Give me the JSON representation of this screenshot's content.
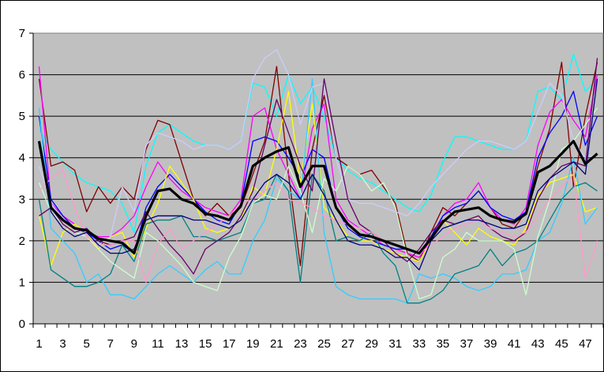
{
  "chart_data": {
    "type": "line",
    "title": "",
    "xlabel": "",
    "ylabel": "",
    "x": [
      1,
      2,
      3,
      4,
      5,
      6,
      7,
      8,
      9,
      10,
      11,
      12,
      13,
      14,
      15,
      16,
      17,
      18,
      19,
      20,
      21,
      22,
      23,
      24,
      25,
      26,
      27,
      28,
      29,
      30,
      31,
      32,
      33,
      34,
      35,
      36,
      37,
      38,
      39,
      40,
      41,
      42,
      43,
      44,
      45,
      46,
      47,
      48
    ],
    "x_tick_labels": [
      "1",
      "3",
      "5",
      "7",
      "9",
      "11",
      "13",
      "15",
      "17",
      "19",
      "21",
      "23",
      "25",
      "27",
      "29",
      "31",
      "33",
      "35",
      "37",
      "39",
      "41",
      "43",
      "45",
      "47"
    ],
    "y_ticks": [
      0,
      1,
      2,
      3,
      4,
      5,
      6,
      7
    ],
    "ylim": [
      0,
      7
    ],
    "grid": "horizontal",
    "plot_background": "#c0c0c0",
    "legend": "none",
    "average_series": {
      "color": "#000000",
      "values": [
        4.4,
        2.8,
        2.5,
        2.3,
        2.25,
        2.05,
        2.0,
        1.95,
        1.7,
        2.6,
        3.2,
        3.25,
        3.0,
        2.9,
        2.65,
        2.6,
        2.5,
        2.85,
        3.8,
        4.0,
        4.15,
        4.25,
        3.3,
        3.8,
        3.8,
        2.8,
        2.4,
        2.15,
        2.1,
        2.0,
        1.9,
        1.8,
        1.7,
        2.05,
        2.45,
        2.7,
        2.75,
        2.8,
        2.6,
        2.5,
        2.45,
        2.65,
        3.65,
        3.8,
        4.1,
        4.4,
        3.85,
        4.1
      ]
    },
    "series": [
      {
        "color": "#00ffff",
        "values": [
          4.7,
          4.2,
          3.9,
          3.6,
          3.4,
          3.3,
          3.2,
          2.9,
          2.2,
          3.8,
          4.6,
          4.8,
          4.6,
          4.4,
          4.3,
          4.3,
          4.2,
          4.4,
          5.8,
          5.7,
          5.0,
          6.0,
          5.3,
          5.7,
          5.0,
          4.0,
          3.7,
          3.5,
          3.4,
          3.2,
          3.0,
          2.8,
          2.7,
          3.1,
          3.9,
          4.5,
          4.5,
          4.4,
          4.3,
          4.2,
          4.2,
          4.4,
          5.6,
          5.7,
          5.4,
          6.5,
          5.6,
          5.9
        ]
      },
      {
        "color": "#800000",
        "values": [
          5.9,
          3.8,
          3.9,
          3.7,
          2.7,
          3.3,
          2.9,
          3.3,
          3.0,
          4.2,
          4.9,
          4.8,
          3.9,
          3.0,
          2.6,
          2.9,
          2.6,
          2.8,
          3.6,
          4.4,
          6.2,
          3.6,
          1.4,
          4.2,
          5.5,
          4.0,
          3.8,
          3.6,
          3.7,
          3.3,
          2.9,
          1.7,
          1.5,
          2.2,
          2.8,
          2.6,
          2.9,
          3.2,
          2.8,
          2.4,
          2.3,
          2.7,
          3.8,
          4.7,
          6.3,
          3.3,
          5.0,
          6.3
        ]
      },
      {
        "color": "#ff00ff",
        "values": [
          6.2,
          2.9,
          2.6,
          2.4,
          2.2,
          2.1,
          2.1,
          2.3,
          2.6,
          3.3,
          3.9,
          3.5,
          3.2,
          3.0,
          2.8,
          2.7,
          2.6,
          3.0,
          5.0,
          5.2,
          4.2,
          3.6,
          3.0,
          4.7,
          5.3,
          3.0,
          2.5,
          2.3,
          2.1,
          1.9,
          1.8,
          1.7,
          1.6,
          2.0,
          2.6,
          2.9,
          3.0,
          3.4,
          2.8,
          2.5,
          2.4,
          2.8,
          4.3,
          5.1,
          5.4,
          4.9,
          4.5,
          6.0
        ]
      },
      {
        "color": "#0000ff",
        "values": [
          5.0,
          3.0,
          2.6,
          2.3,
          2.2,
          2.0,
          1.8,
          1.9,
          1.7,
          2.8,
          3.3,
          3.6,
          3.3,
          3.0,
          2.7,
          2.5,
          2.4,
          2.9,
          4.4,
          4.5,
          4.4,
          4.0,
          3.5,
          4.2,
          4.0,
          2.8,
          2.3,
          2.1,
          2.0,
          1.9,
          1.8,
          1.8,
          1.7,
          2.1,
          2.6,
          2.8,
          2.9,
          3.2,
          2.8,
          2.6,
          2.5,
          2.7,
          4.0,
          4.6,
          5.0,
          5.6,
          4.3,
          5.0
        ]
      },
      {
        "color": "#ffff00",
        "values": [
          2.6,
          1.4,
          2.2,
          2.4,
          2.2,
          1.8,
          2.1,
          2.2,
          1.6,
          2.3,
          2.9,
          3.8,
          3.4,
          3.0,
          2.3,
          2.2,
          2.3,
          2.5,
          3.3,
          3.1,
          4.2,
          5.6,
          3.4,
          5.3,
          2.8,
          2.5,
          2.1,
          2.0,
          2.0,
          1.8,
          1.7,
          1.6,
          1.5,
          2.0,
          2.5,
          2.2,
          1.9,
          2.3,
          2.1,
          2.0,
          1.9,
          2.3,
          3.1,
          3.4,
          3.5,
          3.6,
          2.7,
          2.8
        ]
      },
      {
        "color": "#33ccff",
        "values": [
          5.2,
          2.3,
          2.0,
          1.7,
          1.0,
          1.2,
          0.7,
          0.7,
          0.6,
          0.9,
          1.2,
          1.4,
          1.2,
          1.0,
          1.3,
          1.5,
          1.2,
          1.2,
          2.0,
          2.5,
          3.5,
          3.2,
          3.0,
          5.9,
          2.2,
          0.9,
          0.7,
          0.6,
          0.6,
          0.6,
          0.6,
          0.5,
          1.2,
          1.1,
          1.2,
          1.1,
          0.9,
          0.8,
          0.9,
          1.2,
          1.2,
          1.3,
          2.0,
          2.2,
          2.9,
          4.0,
          2.4,
          2.8
        ]
      },
      {
        "color": "#008080",
        "values": [
          3.0,
          1.3,
          1.1,
          0.9,
          0.9,
          1.0,
          1.2,
          1.9,
          1.5,
          2.4,
          2.5,
          2.5,
          2.6,
          2.1,
          2.1,
          2.0,
          2.1,
          2.2,
          2.9,
          3.0,
          3.6,
          3.2,
          1.0,
          3.6,
          3.2,
          2.0,
          2.1,
          2.0,
          2.2,
          1.7,
          1.4,
          0.5,
          0.5,
          0.6,
          0.8,
          1.2,
          1.3,
          1.4,
          1.8,
          1.4,
          1.7,
          1.8,
          2.0,
          2.5,
          3.0,
          3.3,
          3.4,
          3.2
        ]
      },
      {
        "color": "#ccffcc",
        "values": [
          3.4,
          2.7,
          2.4,
          2.2,
          2.1,
          1.8,
          1.5,
          1.3,
          1.1,
          2.2,
          2.0,
          1.7,
          1.4,
          1.0,
          0.9,
          0.8,
          1.6,
          2.1,
          2.9,
          3.1,
          3.0,
          3.8,
          3.2,
          2.2,
          3.5,
          3.2,
          3.8,
          3.6,
          3.2,
          3.4,
          2.8,
          1.6,
          0.6,
          0.7,
          1.6,
          1.8,
          2.2,
          2.0,
          2.0,
          2.0,
          1.8,
          0.7,
          2.1,
          3.0,
          4.2,
          4.4,
          4.8,
          5.2
        ]
      },
      {
        "color": "#ccccff",
        "values": [
          3.8,
          2.9,
          2.5,
          2.3,
          2.1,
          1.9,
          2.1,
          3.3,
          2.7,
          4.3,
          4.6,
          4.5,
          4.4,
          4.2,
          4.3,
          4.3,
          4.2,
          4.4,
          5.9,
          6.4,
          6.6,
          6.0,
          4.8,
          5.7,
          5.8,
          4.0,
          3.0,
          2.9,
          2.9,
          2.8,
          2.7,
          2.6,
          2.9,
          3.3,
          3.6,
          3.9,
          4.2,
          4.4,
          4.4,
          4.3,
          4.2,
          4.4,
          5.1,
          5.8,
          5.5,
          4.4,
          4.0,
          4.1
        ]
      },
      {
        "color": "#660066",
        "values": [
          2.6,
          2.8,
          2.4,
          2.2,
          2.3,
          2.0,
          1.9,
          2.0,
          2.1,
          2.7,
          2.3,
          1.9,
          1.6,
          1.2,
          1.8,
          2.0,
          2.2,
          2.6,
          3.2,
          4.3,
          5.4,
          4.6,
          3.8,
          3.2,
          5.9,
          4.4,
          3.0,
          2.4,
          2.2,
          2.0,
          1.7,
          1.5,
          1.8,
          2.2,
          2.5,
          2.4,
          2.5,
          2.6,
          2.3,
          2.1,
          2.0,
          2.2,
          3.0,
          3.5,
          3.8,
          3.9,
          3.8,
          6.4
        ]
      },
      {
        "color": "#ff99cc",
        "values": [
          3.2,
          3.5,
          3.7,
          2.8,
          2.1,
          1.9,
          1.9,
          2.0,
          2.0,
          1.0,
          1.9,
          2.3,
          1.8,
          2.0,
          2.2,
          2.4,
          2.6,
          2.9,
          3.0,
          3.2,
          3.4,
          3.0,
          2.9,
          2.8,
          2.6,
          2.5,
          2.4,
          2.3,
          2.2,
          2.0,
          1.9,
          1.8,
          1.7,
          1.9,
          2.1,
          2.3,
          2.4,
          2.5,
          2.3,
          2.2,
          2.1,
          2.2,
          2.6,
          3.0,
          3.3,
          3.6,
          1.1,
          2.0
        ]
      },
      {
        "color": "#000080",
        "values": [
          4.3,
          2.7,
          2.3,
          2.1,
          2.2,
          1.9,
          1.7,
          1.7,
          1.8,
          2.5,
          2.6,
          2.6,
          2.6,
          2.5,
          2.5,
          2.4,
          2.3,
          2.5,
          3.0,
          3.4,
          3.6,
          3.4,
          3.0,
          3.6,
          3.1,
          2.5,
          2.0,
          1.9,
          1.9,
          1.8,
          1.6,
          1.6,
          1.3,
          2.0,
          2.3,
          2.4,
          2.5,
          2.5,
          2.4,
          2.3,
          2.3,
          2.4,
          3.2,
          3.5,
          3.7,
          3.9,
          3.6,
          5.9
        ]
      }
    ]
  }
}
